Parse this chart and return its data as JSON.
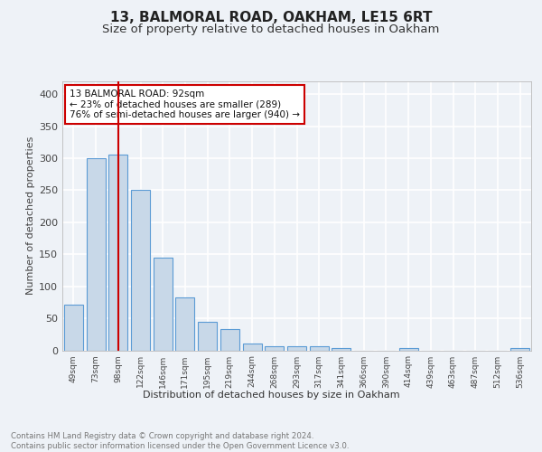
{
  "title1": "13, BALMORAL ROAD, OAKHAM, LE15 6RT",
  "title2": "Size of property relative to detached houses in Oakham",
  "xlabel": "Distribution of detached houses by size in Oakham",
  "ylabel": "Number of detached properties",
  "categories": [
    "49sqm",
    "73sqm",
    "98sqm",
    "122sqm",
    "146sqm",
    "171sqm",
    "195sqm",
    "219sqm",
    "244sqm",
    "268sqm",
    "293sqm",
    "317sqm",
    "341sqm",
    "366sqm",
    "390sqm",
    "414sqm",
    "439sqm",
    "463sqm",
    "487sqm",
    "512sqm",
    "536sqm"
  ],
  "values": [
    72,
    300,
    305,
    250,
    145,
    83,
    45,
    33,
    10,
    6,
    7,
    7,
    3,
    0,
    0,
    4,
    0,
    0,
    0,
    0,
    3
  ],
  "bar_color": "#c8d8e8",
  "bar_edge_color": "#5b9bd5",
  "vline_x": 2,
  "vline_color": "#cc0000",
  "annotation_text": "13 BALMORAL ROAD: 92sqm\n← 23% of detached houses are smaller (289)\n76% of semi-detached houses are larger (940) →",
  "annotation_box_color": "#ffffff",
  "annotation_box_edge": "#cc0000",
  "ylim": [
    0,
    420
  ],
  "yticks": [
    0,
    50,
    100,
    150,
    200,
    250,
    300,
    350,
    400
  ],
  "footer": "Contains HM Land Registry data © Crown copyright and database right 2024.\nContains public sector information licensed under the Open Government Licence v3.0.",
  "bg_color": "#eef2f7",
  "grid_color": "#ffffff",
  "title1_fontsize": 11,
  "title2_fontsize": 9.5
}
